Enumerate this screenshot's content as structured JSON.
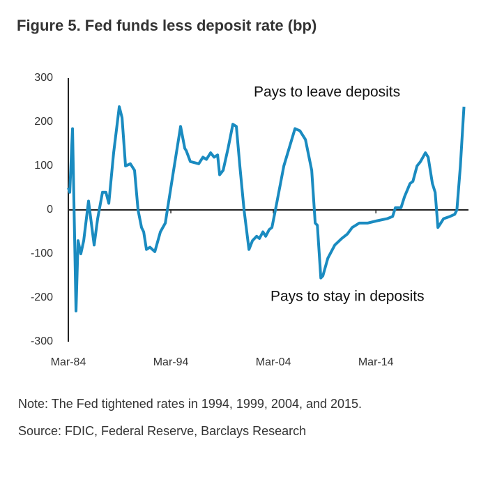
{
  "chart_data": {
    "type": "line",
    "title": "Figure 5. Fed funds less deposit rate (bp)",
    "annotations": [
      "Pays to leave deposits",
      "Pays to stay in deposits"
    ],
    "notes": [
      "Note: The Fed tightened rates in 1994, 1999, 2004, and 2015.",
      "Source: FDIC, Federal Reserve, Barclays Research"
    ],
    "x": [
      1984.17,
      1984.31,
      1984.58,
      1984.92,
      1985.12,
      1985.39,
      1985.67,
      1986.14,
      1986.69,
      1987.03,
      1987.5,
      1987.84,
      1988.12,
      1988.59,
      1989.14,
      1989.41,
      1989.75,
      1990.22,
      1990.63,
      1990.97,
      1991.31,
      1991.52,
      1991.79,
      1992.13,
      1992.61,
      1993.15,
      1993.63,
      1993.83,
      1994.37,
      1995.12,
      1995.53,
      1995.67,
      1996.07,
      1996.89,
      1997.3,
      1997.64,
      1998.05,
      1998.39,
      1998.73,
      1998.93,
      1999.27,
      1999.75,
      2000.22,
      2000.56,
      2000.9,
      2001.31,
      2001.79,
      2002.13,
      2002.54,
      2002.81,
      2003.15,
      2003.42,
      2003.76,
      2004.03,
      2004.37,
      2005.19,
      2006.28,
      2006.76,
      2007.3,
      2007.91,
      2008.25,
      2008.46,
      2008.8,
      2009.0,
      2009.48,
      2010.16,
      2010.84,
      2011.38,
      2011.86,
      2012.54,
      2013.35,
      2014.24,
      2015.26,
      2015.8,
      2016.07,
      2016.62,
      2016.96,
      2017.5,
      2017.78,
      2018.18,
      2018.52,
      2019.0,
      2019.27,
      2019.68,
      2019.95,
      2020.22,
      2020.5,
      2020.77,
      2021.38,
      2021.86,
      2022.07,
      2022.41,
      2022.76
    ],
    "series": [
      {
        "name": "Fed funds less deposit rate",
        "color": "#1a8bc0",
        "values": [
          50,
          40,
          185,
          -230,
          -70,
          -100,
          -70,
          20,
          -80,
          -20,
          40,
          40,
          15,
          130,
          235,
          210,
          100,
          105,
          90,
          0,
          -40,
          -50,
          -90,
          -85,
          -95,
          -50,
          -30,
          0,
          80,
          190,
          140,
          135,
          110,
          105,
          120,
          115,
          130,
          120,
          125,
          80,
          90,
          140,
          195,
          190,
          100,
          0,
          -90,
          -70,
          -60,
          -65,
          -50,
          -60,
          -45,
          -40,
          0,
          100,
          185,
          180,
          160,
          90,
          -30,
          -35,
          -155,
          -150,
          -110,
          -80,
          -65,
          -55,
          -40,
          -30,
          -30,
          -25,
          -20,
          -15,
          5,
          5,
          30,
          60,
          65,
          100,
          110,
          130,
          120,
          60,
          40,
          -40,
          -30,
          -20,
          -15,
          -10,
          0,
          100,
          235
        ]
      }
    ],
    "xlim": [
      1984.17,
      2023.2
    ],
    "xticks": [
      {
        "value": 1984.17,
        "label": "Mar-84"
      },
      {
        "value": 1994.17,
        "label": "Mar-94"
      },
      {
        "value": 2004.17,
        "label": "Mar-04"
      },
      {
        "value": 2014.17,
        "label": "Mar-14"
      }
    ],
    "ylim": [
      -300,
      300
    ],
    "yticks": [
      300,
      200,
      100,
      0,
      -100,
      -200,
      -300
    ]
  }
}
